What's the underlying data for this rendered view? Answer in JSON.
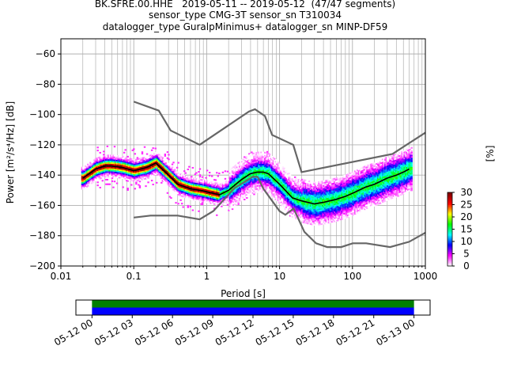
{
  "titles": {
    "line1": "BK.SFRE.00.HHE   2019-05-11 -- 2019-05-12  (47/47 segments)",
    "line2": "sensor_type CMG-3T sensor_sn T310034",
    "line3": "datalogger_type GuralpMinimus+ datalogger_sn MINP-DF59"
  },
  "chart_data": [
    {
      "type": "heatmap",
      "title": "BK.SFRE.00.HHE   2019-05-11 -- 2019-05-12  (47/47 segments)",
      "xlabel": "Period [s]",
      "ylabel": "Power [m²/s⁴/Hz] [dB]",
      "xscale": "log",
      "xlim": [
        0.01,
        1000
      ],
      "ylim": [
        -200,
        -50
      ],
      "x_ticks": [
        "0.01",
        "0.1",
        "1",
        "10",
        "100",
        "1000"
      ],
      "x_tick_values": [
        0.01,
        0.1,
        1,
        10,
        100,
        1000
      ],
      "y_ticks": [
        "−60",
        "−80",
        "−100",
        "−120",
        "−140",
        "−160",
        "−180",
        "−200"
      ],
      "y_tick_values": [
        -60,
        -80,
        -100,
        -120,
        -140,
        -160,
        -180,
        -200
      ],
      "grid": true,
      "colorbar": {
        "label": "[%]",
        "ticks": [
          "0",
          "5",
          "10",
          "15",
          "20",
          "25",
          "30"
        ],
        "tick_values": [
          0,
          5,
          10,
          15,
          20,
          25,
          30
        ],
        "range": [
          0,
          30
        ],
        "colors": [
          "#ffffff",
          "#ff00ff",
          "#0000ff",
          "#00ffff",
          "#00ff00",
          "#ffff00",
          "#ff0000",
          "#800000"
        ]
      },
      "mode_line": {
        "period": [
          0.02,
          0.03,
          0.04,
          0.05,
          0.07,
          0.1,
          0.15,
          0.2,
          0.3,
          0.4,
          0.6,
          0.8,
          1.0,
          1.5,
          2,
          3,
          4,
          5,
          6,
          7,
          10,
          15,
          20,
          30,
          40,
          60,
          80,
          100,
          150,
          200,
          300,
          400,
          500,
          600
        ],
        "power": [
          -142,
          -136,
          -134,
          -134,
          -135,
          -137,
          -135,
          -132,
          -140,
          -146,
          -149,
          -150,
          -151,
          -153,
          -150,
          -143,
          -139,
          -138,
          -138,
          -139,
          -146,
          -155,
          -157,
          -159,
          -158,
          -156,
          -154,
          -152,
          -148,
          -146,
          -142,
          -140,
          -138,
          -136
        ]
      },
      "nhnm": {
        "period": [
          0.1,
          0.22,
          0.32,
          0.8,
          3.8,
          4.6,
          6.3,
          7.9,
          15.4,
          20,
          354.8,
          1000
        ],
        "power": [
          -91.5,
          -97.4,
          -110.5,
          -120,
          -98,
          -96.5,
          -101,
          -113.5,
          -120,
          -138,
          -126,
          -112
        ]
      },
      "nlnm": {
        "period": [
          0.1,
          0.17,
          0.4,
          0.8,
          1.24,
          2.4,
          4.3,
          5,
          6,
          10,
          12,
          15.6,
          21.9,
          31.6,
          45,
          70,
          101,
          154,
          328,
          600,
          1000
        ],
        "power": [
          -168,
          -166.7,
          -166.7,
          -169.2,
          -163.7,
          -148.6,
          -141.1,
          -141.1,
          -149,
          -163.8,
          -166.2,
          -162.1,
          -177.5,
          -185,
          -187.5,
          -187.5,
          -185,
          -185,
          -187.5,
          -184,
          -178
        ]
      }
    },
    {
      "type": "table",
      "title": "",
      "x_ticks": [
        "05-12 00",
        "05-12 03",
        "05-12 06",
        "05-12 09",
        "05-12 12",
        "05-12 15",
        "05-12 18",
        "05-12 21",
        "05-13 00"
      ],
      "x_tick_hours": [
        0,
        3,
        6,
        9,
        12,
        15,
        18,
        21,
        24
      ],
      "xlim_hours": [
        -1.2,
        25.2
      ],
      "coverage": [
        {
          "name": "",
          "start_hour": 0,
          "end_hour": 24,
          "color": "#008000"
        },
        {
          "name": "",
          "start_hour": 0,
          "end_hour": 24,
          "color": "#0000ff"
        }
      ]
    }
  ]
}
